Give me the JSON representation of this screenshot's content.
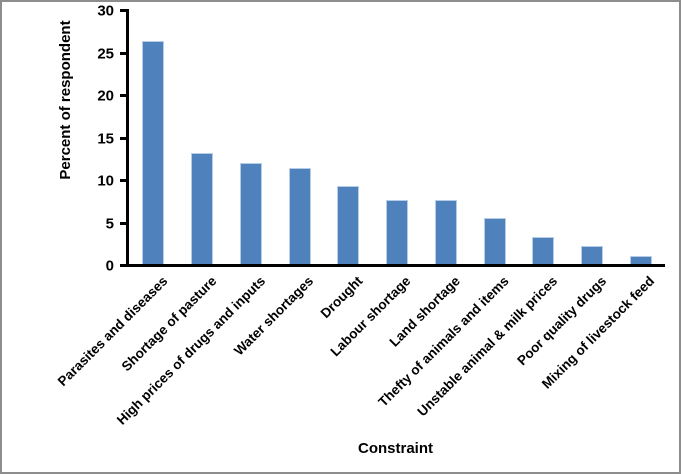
{
  "chart_data": {
    "type": "bar",
    "xlabel": "Constraint",
    "ylabel": "Percent of respondent",
    "categories": [
      "Parasites and diseases",
      "Shortage of pasture",
      "High prices of drugs and inputs",
      "Water shortages",
      "Drought",
      "Labour shortage",
      "Land shortage",
      "Thefty of animals and items",
      "Unstable animal & milk prices",
      "Poor quality drugs",
      "Mixing of livestock feed"
    ],
    "values": [
      26.4,
      13.2,
      12.1,
      11.5,
      9.3,
      7.7,
      7.7,
      5.5,
      3.3,
      2.2,
      1.1
    ],
    "ylim": [
      0,
      30
    ],
    "yticks": [
      0,
      5,
      10,
      15,
      20,
      25,
      30
    ],
    "grid": false,
    "legend_position": "none",
    "bar_color": "#4F81BD",
    "bar_edge_color": "#B7CCE5",
    "axis_color": "#000000",
    "text_color": "#000000",
    "background_color": "#FFFFFF",
    "frame_border_color": "#8D8D8D"
  }
}
